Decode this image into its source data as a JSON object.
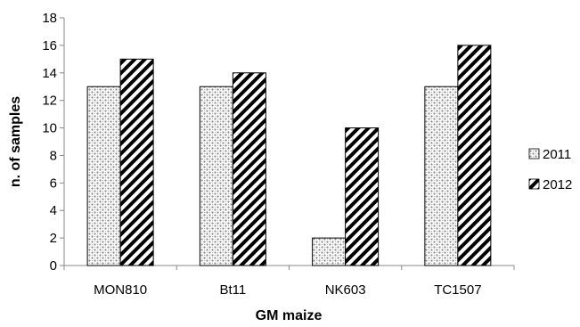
{
  "chart_data": {
    "type": "bar",
    "title": "",
    "xlabel": "GM maize",
    "ylabel": "n. of samples",
    "categories": [
      "MON810",
      "Bt11",
      "NK603",
      "TC1507"
    ],
    "series": [
      {
        "name": "2011",
        "values": [
          13,
          13,
          2,
          13
        ],
        "pattern": "dots"
      },
      {
        "name": "2012",
        "values": [
          15,
          14,
          10,
          16
        ],
        "pattern": "diagonal-stripes"
      }
    ],
    "ylim": [
      0,
      18
    ],
    "yticks": [
      0,
      2,
      4,
      6,
      8,
      10,
      12,
      14,
      16,
      18
    ],
    "grid": false,
    "legend_position": "right",
    "colors": {
      "bar_stroke": "#000000",
      "dot_fill": "#888888",
      "stripe": "#000000",
      "axis": "#888888"
    }
  }
}
